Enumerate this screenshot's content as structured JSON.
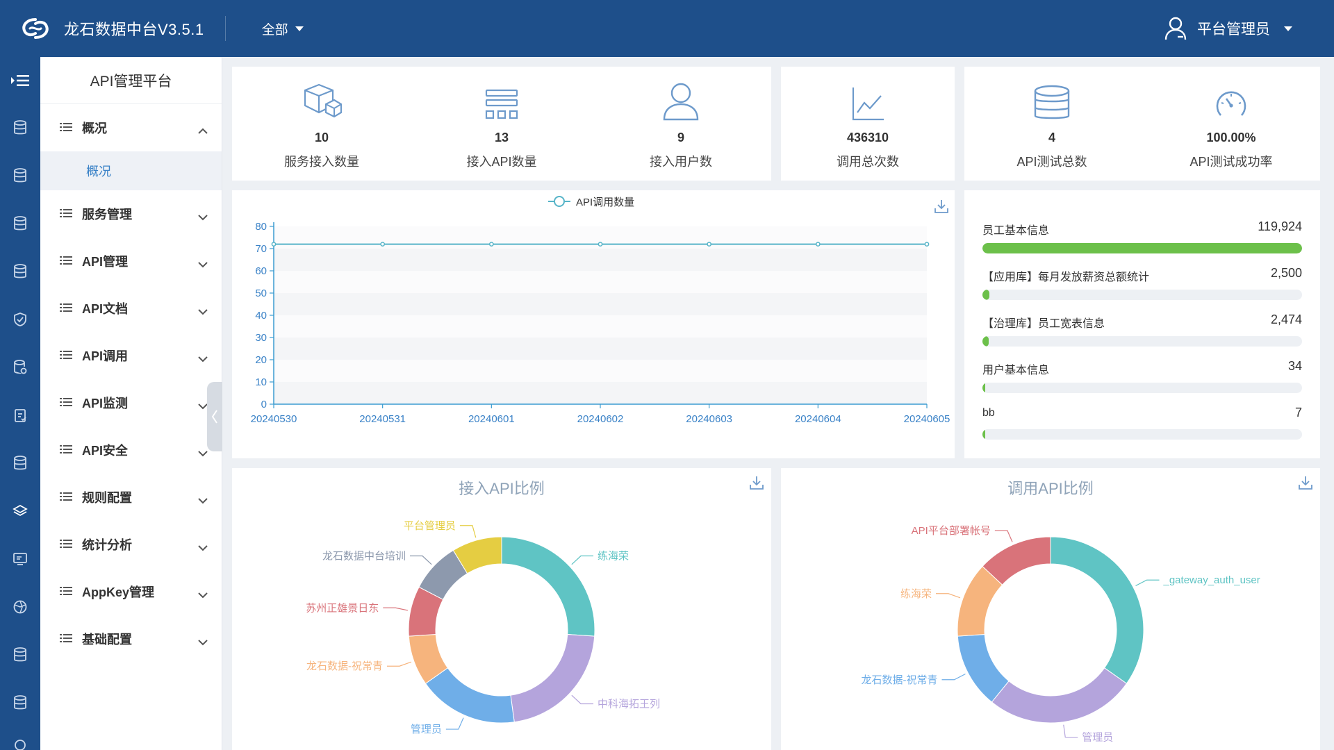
{
  "header": {
    "app_title": "龙石数据中台V3.5.1",
    "scope_select": "全部",
    "user_name": "平台管理员"
  },
  "rail": {
    "icons": [
      "menu-toggle-icon",
      "database-icon",
      "database-icon",
      "database-icon",
      "database-icon",
      "shield-icon",
      "database-settings-icon",
      "clipboard-icon",
      "database-icon",
      "layers-icon",
      "monitor-icon",
      "aperture-icon",
      "database-icon",
      "database-icon"
    ]
  },
  "sidebar": {
    "title": "API管理平台",
    "overview_group": "概况",
    "overview_sub": "概况",
    "items": [
      "服务管理",
      "API管理",
      "API文档",
      "API调用",
      "API监测",
      "API安全",
      "规则配置",
      "统计分析",
      "AppKey管理",
      "基础配置"
    ]
  },
  "stats": {
    "service_count": {
      "value": "10",
      "label": "服务接入数量"
    },
    "api_count": {
      "value": "13",
      "label": "接入API数量"
    },
    "user_count": {
      "value": "9",
      "label": "接入用户数"
    },
    "call_total": {
      "value": "436310",
      "label": "调用总次数"
    },
    "test_total": {
      "value": "4",
      "label": "API测试总数"
    },
    "test_success": {
      "value": "100.00%",
      "label": "API测试成功率"
    }
  },
  "ranking": {
    "items": [
      {
        "name": "员工基本信息",
        "value_text": "119,924",
        "value": 119924
      },
      {
        "name": "【应用库】每月发放薪资总额统计",
        "value_text": "2,500",
        "value": 2500
      },
      {
        "name": "【治理库】员工宽表信息",
        "value_text": "2,474",
        "value": 2474
      },
      {
        "name": "用户基本信息",
        "value_text": "34",
        "value": 34
      },
      {
        "name": "bb",
        "value_text": "7",
        "value": 7
      }
    ]
  },
  "chart_data": [
    {
      "type": "line",
      "legend": [
        "API调用数量"
      ],
      "legend_position": "top-center",
      "x": [
        "20240530",
        "20240531",
        "20240601",
        "20240602",
        "20240603",
        "20240604",
        "20240605"
      ],
      "y_ticks": [
        "0",
        "10",
        "20",
        "30",
        "40",
        "50",
        "60",
        "70",
        "80"
      ],
      "ylim": [
        0,
        80
      ],
      "grid": "alternating horizontal bands",
      "series": [
        {
          "name": "API调用数量",
          "values": [
            72,
            72,
            72,
            72,
            72,
            72,
            72
          ],
          "color": "#56b4c8"
        }
      ]
    },
    {
      "type": "pie",
      "title": "接入API比例",
      "slices": [
        {
          "label": "练海荣",
          "value": 3,
          "color": "#5fc4c4"
        },
        {
          "label": "中科海拓王列",
          "value": 2.5,
          "color": "#b4a4dc"
        },
        {
          "label": "管理员",
          "value": 2,
          "color": "#6faee8"
        },
        {
          "label": "龙石数据-祝常青",
          "value": 1,
          "color": "#f6b47d"
        },
        {
          "label": "苏州正雄景日东",
          "value": 1,
          "color": "#d9737a"
        },
        {
          "label": "龙石数据中台培训",
          "value": 1,
          "color": "#8d99ad"
        },
        {
          "label": "平台管理员",
          "value": 1,
          "color": "#e5cd42"
        }
      ]
    },
    {
      "type": "pie",
      "title": "调用API比例",
      "slices": [
        {
          "label": "_gateway_auth_user",
          "value": 4,
          "color": "#5fc4c4"
        },
        {
          "label": "管理员",
          "value": 3,
          "color": "#b4a4dc"
        },
        {
          "label": "龙石数据-祝常青",
          "value": 1.5,
          "color": "#6faee8"
        },
        {
          "label": "练海荣",
          "value": 1.5,
          "color": "#f6b47d"
        },
        {
          "label": "API平台部署帐号",
          "value": 1.5,
          "color": "#d9737a"
        }
      ]
    }
  ],
  "colors": {
    "header_bg": "#1e4f8a",
    "accent": "#3a82c7",
    "progress": "#6cc04a"
  }
}
